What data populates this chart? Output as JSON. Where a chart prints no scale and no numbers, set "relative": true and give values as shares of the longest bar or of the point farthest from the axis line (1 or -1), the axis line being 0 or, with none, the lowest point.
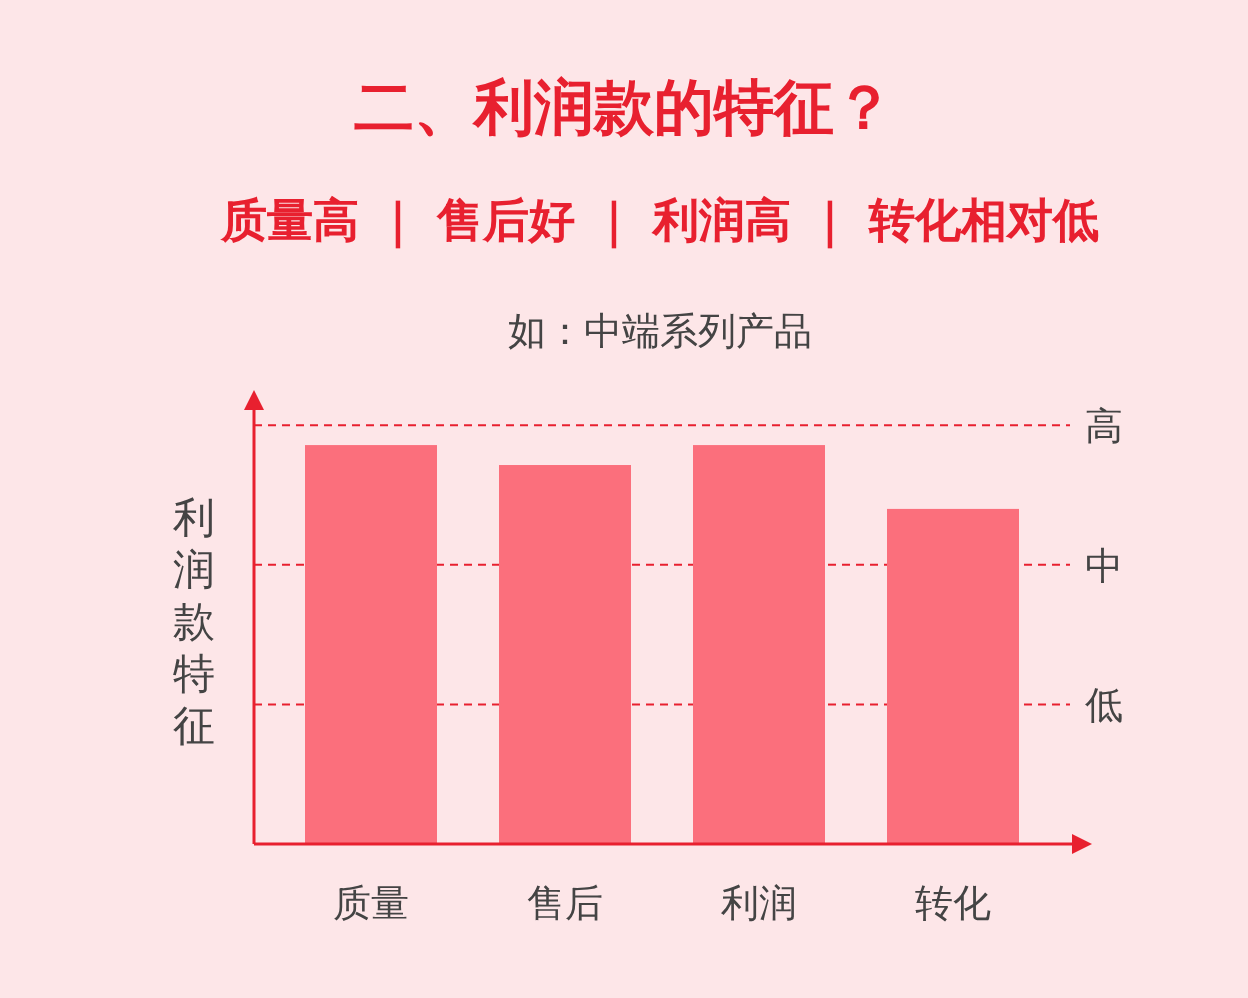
{
  "chart_data": {
    "type": "bar",
    "title": "二、利润款的特征？",
    "subtitle": "质量高 ｜ 售后好 ｜ 利润高 ｜ 转化相对低",
    "annotations": [
      "如：中端系列产品"
    ],
    "ylabel": "利润款特征",
    "categories": [
      "质量",
      "售后",
      "利润",
      "转化"
    ],
    "values": [
      1,
      0.95,
      1,
      0.84
    ],
    "color": "#fb6f7c",
    "relative": true,
    "ref_lines": [
      {
        "axis": "y",
        "value": 0.35,
        "label": "低",
        "line_style": "dashed",
        "color": "#e8202f"
      },
      {
        "axis": "y",
        "value": 0.7,
        "label": "中",
        "line_style": "dashed",
        "color": "#e8202f"
      },
      {
        "axis": "y",
        "value": 1.05,
        "label": "高",
        "line_style": "dashed",
        "color": "#e8202f"
      }
    ]
  }
}
